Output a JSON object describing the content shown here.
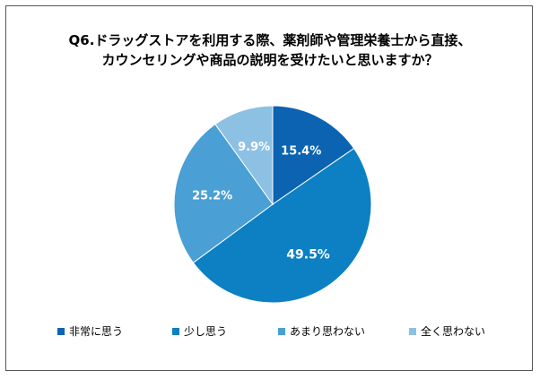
{
  "chart_data": {
    "type": "pie",
    "title_lines": [
      "Q6.ドラッグストアを利用する際、薬剤師や管理栄養士から直接、",
      "カウンセリングや商品の説明を受けたいと思いますか？"
    ],
    "slices": [
      {
        "label": "非常に思う",
        "value": 15.4,
        "value_label": "15.4%",
        "color": "#0b63b2",
        "text_color": "#ffffff"
      },
      {
        "label": "少し思う",
        "value": 49.5,
        "value_label": "49.5%",
        "color": "#0c80c3",
        "text_color": "#ffffff"
      },
      {
        "label": "あまり思わない",
        "value": 25.2,
        "value_label": "25.2%",
        "color": "#4a9fd4",
        "text_color": "#ffffff"
      },
      {
        "label": "全く思わない",
        "value": 9.9,
        "value_label": "9.9%",
        "color": "#8dc1e3",
        "text_color": "#ffffff"
      }
    ],
    "legend": {
      "position": "bottom"
    }
  }
}
